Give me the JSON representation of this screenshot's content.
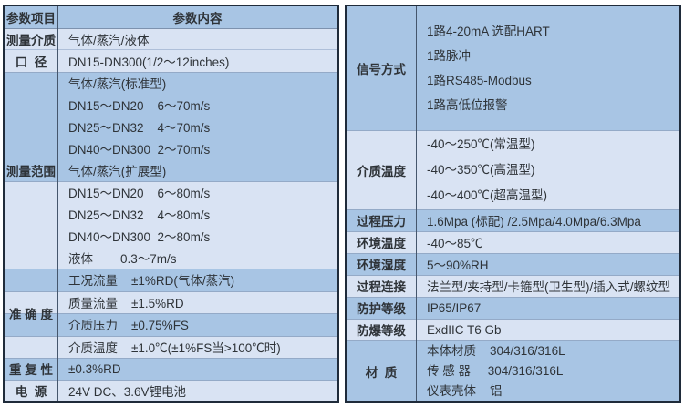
{
  "theme": {
    "band_medium_blue": "#a8c5e4",
    "band_pale_blue": "#d9e3f3",
    "outer_border": "#1f2b3a",
    "separator_line": "#94aac7",
    "text_color": "#2e3338"
  },
  "left": {
    "header": {
      "param": "参数项目",
      "content": "参数内容"
    },
    "medium_row": {
      "label": "测量介质",
      "value": "气体/蒸汽/液体"
    },
    "diameter_row": {
      "label": "口  径",
      "value": "DN15-DN300(1/2～12inches)"
    },
    "range": {
      "label": "测量范围",
      "lines": [
        "气体/蒸汽(标准型)",
        "DN15～DN20    6～70m/s",
        "DN25～DN32    4～70m/s",
        "DN40～DN300  2～70m/s",
        "气体/蒸汽(扩展型)",
        "DN15～DN20    6～80m/s",
        "DN25～DN32    4～80m/s",
        "DN40～DN300  2～80m/s",
        "液体        0.3～7m/s"
      ]
    },
    "accuracy": {
      "label": "准 确 度",
      "lines": [
        "工况流量    ±1%RD(气体/蒸汽)",
        "质量流量    ±1.5%RD",
        "介质压力    ±0.75%FS",
        "介质温度    ±1.0℃(±1%FS当>100℃时)"
      ]
    },
    "repeatability_row": {
      "label": "重 复 性",
      "value": "±0.3%RD"
    },
    "power_row": {
      "label": "电  源",
      "value": "24V DC、3.6V锂电池"
    }
  },
  "right": {
    "signal": {
      "label": "信号方式",
      "lines": [
        "1路4-20mA 选配HART",
        "1路脉冲",
        "1路RS485-Modbus",
        "1路高低位报警"
      ]
    },
    "medium_temp": {
      "label": "介质温度",
      "lines": [
        "-40～250℃(常温型)",
        "-40～350℃(高温型)",
        "-40～400℃(超高温型)"
      ]
    },
    "rows": [
      {
        "label": "过程压力",
        "value": "1.6Mpa (标配) /2.5Mpa/4.0Mpa/6.3Mpa"
      },
      {
        "label": "环境温度",
        "value": "-40～85℃"
      },
      {
        "label": "环境湿度",
        "value": "5～90%RH"
      },
      {
        "label": "过程连接",
        "value": "法兰型/夹持型/卡箍型(卫生型)/插入式/螺纹型"
      },
      {
        "label": "防护等级",
        "value": "IP65/IP67"
      },
      {
        "label": "防爆等级",
        "value": "ExdIIC T6 Gb"
      }
    ],
    "material": {
      "label": "材  质",
      "lines": [
        "本体材质    304/316/316L",
        "传 感 器     304/316/316L",
        "仪表壳体    铝"
      ]
    }
  }
}
